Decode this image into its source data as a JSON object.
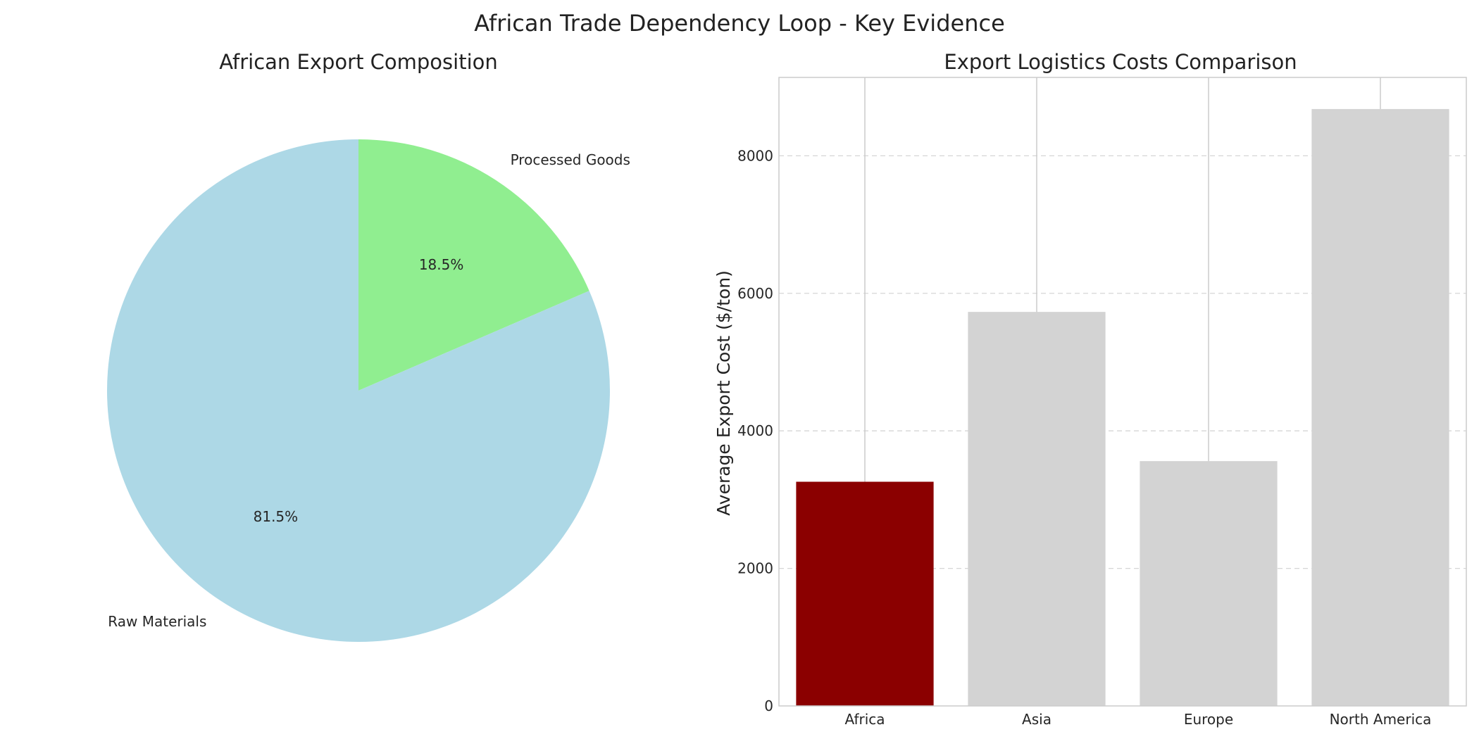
{
  "figure": {
    "title": "African Trade Dependency Loop - Key Evidence"
  },
  "chart_data": [
    {
      "type": "pie",
      "title": "African Export Composition",
      "labels": [
        "Processed Goods",
        "Raw Materials"
      ],
      "values": [
        18.5,
        81.5
      ],
      "autopct_labels": [
        "18.5%",
        "81.5%"
      ],
      "colors": [
        "#90ee90",
        "#add8e6"
      ],
      "start_angle_deg": 90,
      "direction": "clockwise"
    },
    {
      "type": "bar",
      "title": "Export Logistics Costs Comparison",
      "categories": [
        "Africa",
        "Asia",
        "Europe",
        "North America"
      ],
      "values": [
        3260,
        5730,
        3560,
        8680
      ],
      "colors": [
        "#8b0000",
        "#d3d3d3",
        "#d3d3d3",
        "#d3d3d3"
      ],
      "xlabel": "",
      "ylabel": "Average Export Cost ($/ton)",
      "ylim": [
        0,
        9140
      ],
      "yticks": [
        0,
        2000,
        4000,
        6000,
        8000
      ],
      "grid": {
        "y": "dashed",
        "x": "solid"
      }
    }
  ]
}
